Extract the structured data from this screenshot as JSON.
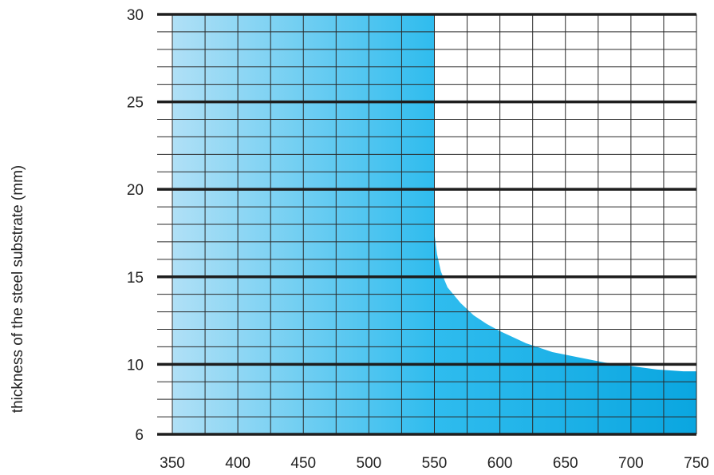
{
  "chart_data": {
    "type": "area",
    "ylabel": "thickness of the steel substrate (mm)",
    "xlabel": "",
    "xlim": [
      350,
      750
    ],
    "ylim": [
      6,
      30
    ],
    "x_ticks": [
      350,
      400,
      450,
      500,
      550,
      600,
      650,
      700,
      750
    ],
    "x_tick_labels": [
      "350",
      "400",
      "450",
      "500",
      "550",
      "600",
      "650",
      "700",
      "750"
    ],
    "y_ticks": [
      6,
      10,
      15,
      20,
      25,
      30
    ],
    "y_tick_labels": [
      "6",
      "10",
      "15",
      "20",
      "25",
      "30"
    ],
    "y_minor_step": 1,
    "x_minor_step": 25,
    "grid": true,
    "series": [
      {
        "x": [
          350,
          550,
          550,
          552,
          555,
          560,
          570,
          580,
          590,
          600,
          620,
          640,
          660,
          680,
          700,
          720,
          740,
          750
        ],
        "y": [
          30,
          30,
          17.5,
          16.3,
          15.3,
          14.4,
          13.5,
          12.8,
          12.3,
          11.9,
          11.2,
          10.7,
          10.4,
          10.1,
          9.9,
          9.7,
          9.6,
          9.6
        ]
      }
    ],
    "colors": {
      "fill_start": "#b0e0f6",
      "fill_mid": "#2fbcee",
      "fill_end": "#0aa6e0",
      "grid_major": "#1e1e1e",
      "grid_minor": "#2a2a2a"
    }
  }
}
